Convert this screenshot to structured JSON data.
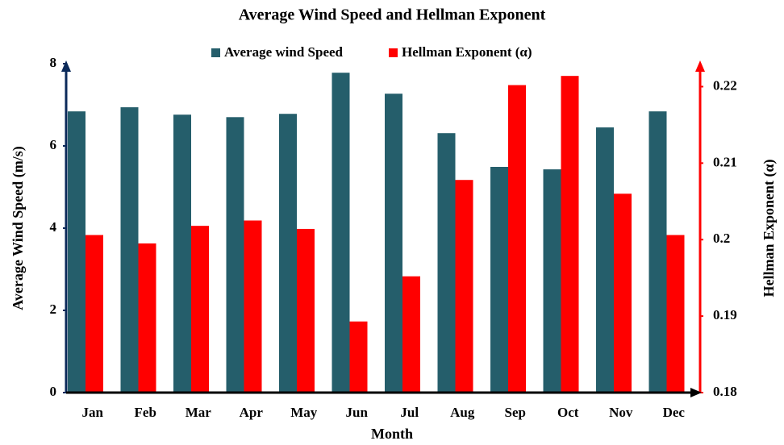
{
  "chart_data": {
    "type": "bar",
    "title": "Average Wind Speed and Hellman Exponent",
    "x_label": "Month",
    "y_label": "Average Wind Speed (m/s)",
    "y2_label": "Hellman Exponent (α)",
    "categories": [
      "Jan",
      "Feb",
      "Mar",
      "Apr",
      "May",
      "Jun",
      "Jul",
      "Aug",
      "Sep",
      "Oct",
      "Nov",
      "Dec"
    ],
    "series": [
      {
        "name": "Average wind Speed",
        "color": "#255e6b",
        "values": [
          6.84,
          6.94,
          6.76,
          6.7,
          6.78,
          7.78,
          7.27,
          6.31,
          5.49,
          5.43,
          6.45,
          6.84
        ]
      },
      {
        "name": "Hellman Exponent (α)",
        "color": "#ff0000",
        "axis": "y2",
        "values": [
          0.2006,
          0.1995,
          0.2018,
          0.2025,
          0.2014,
          0.1893,
          0.1952,
          0.2078,
          0.2202,
          0.2214,
          0.206,
          0.2006
        ]
      }
    ],
    "ylim": [
      0,
      8
    ],
    "yticks": [
      0,
      2,
      4,
      6,
      8
    ],
    "y2lim": [
      0.18,
      0.223
    ],
    "y2ticks": [
      0.18,
      0.19,
      0.2,
      0.21,
      0.22
    ],
    "legend": "top",
    "grid": false
  }
}
